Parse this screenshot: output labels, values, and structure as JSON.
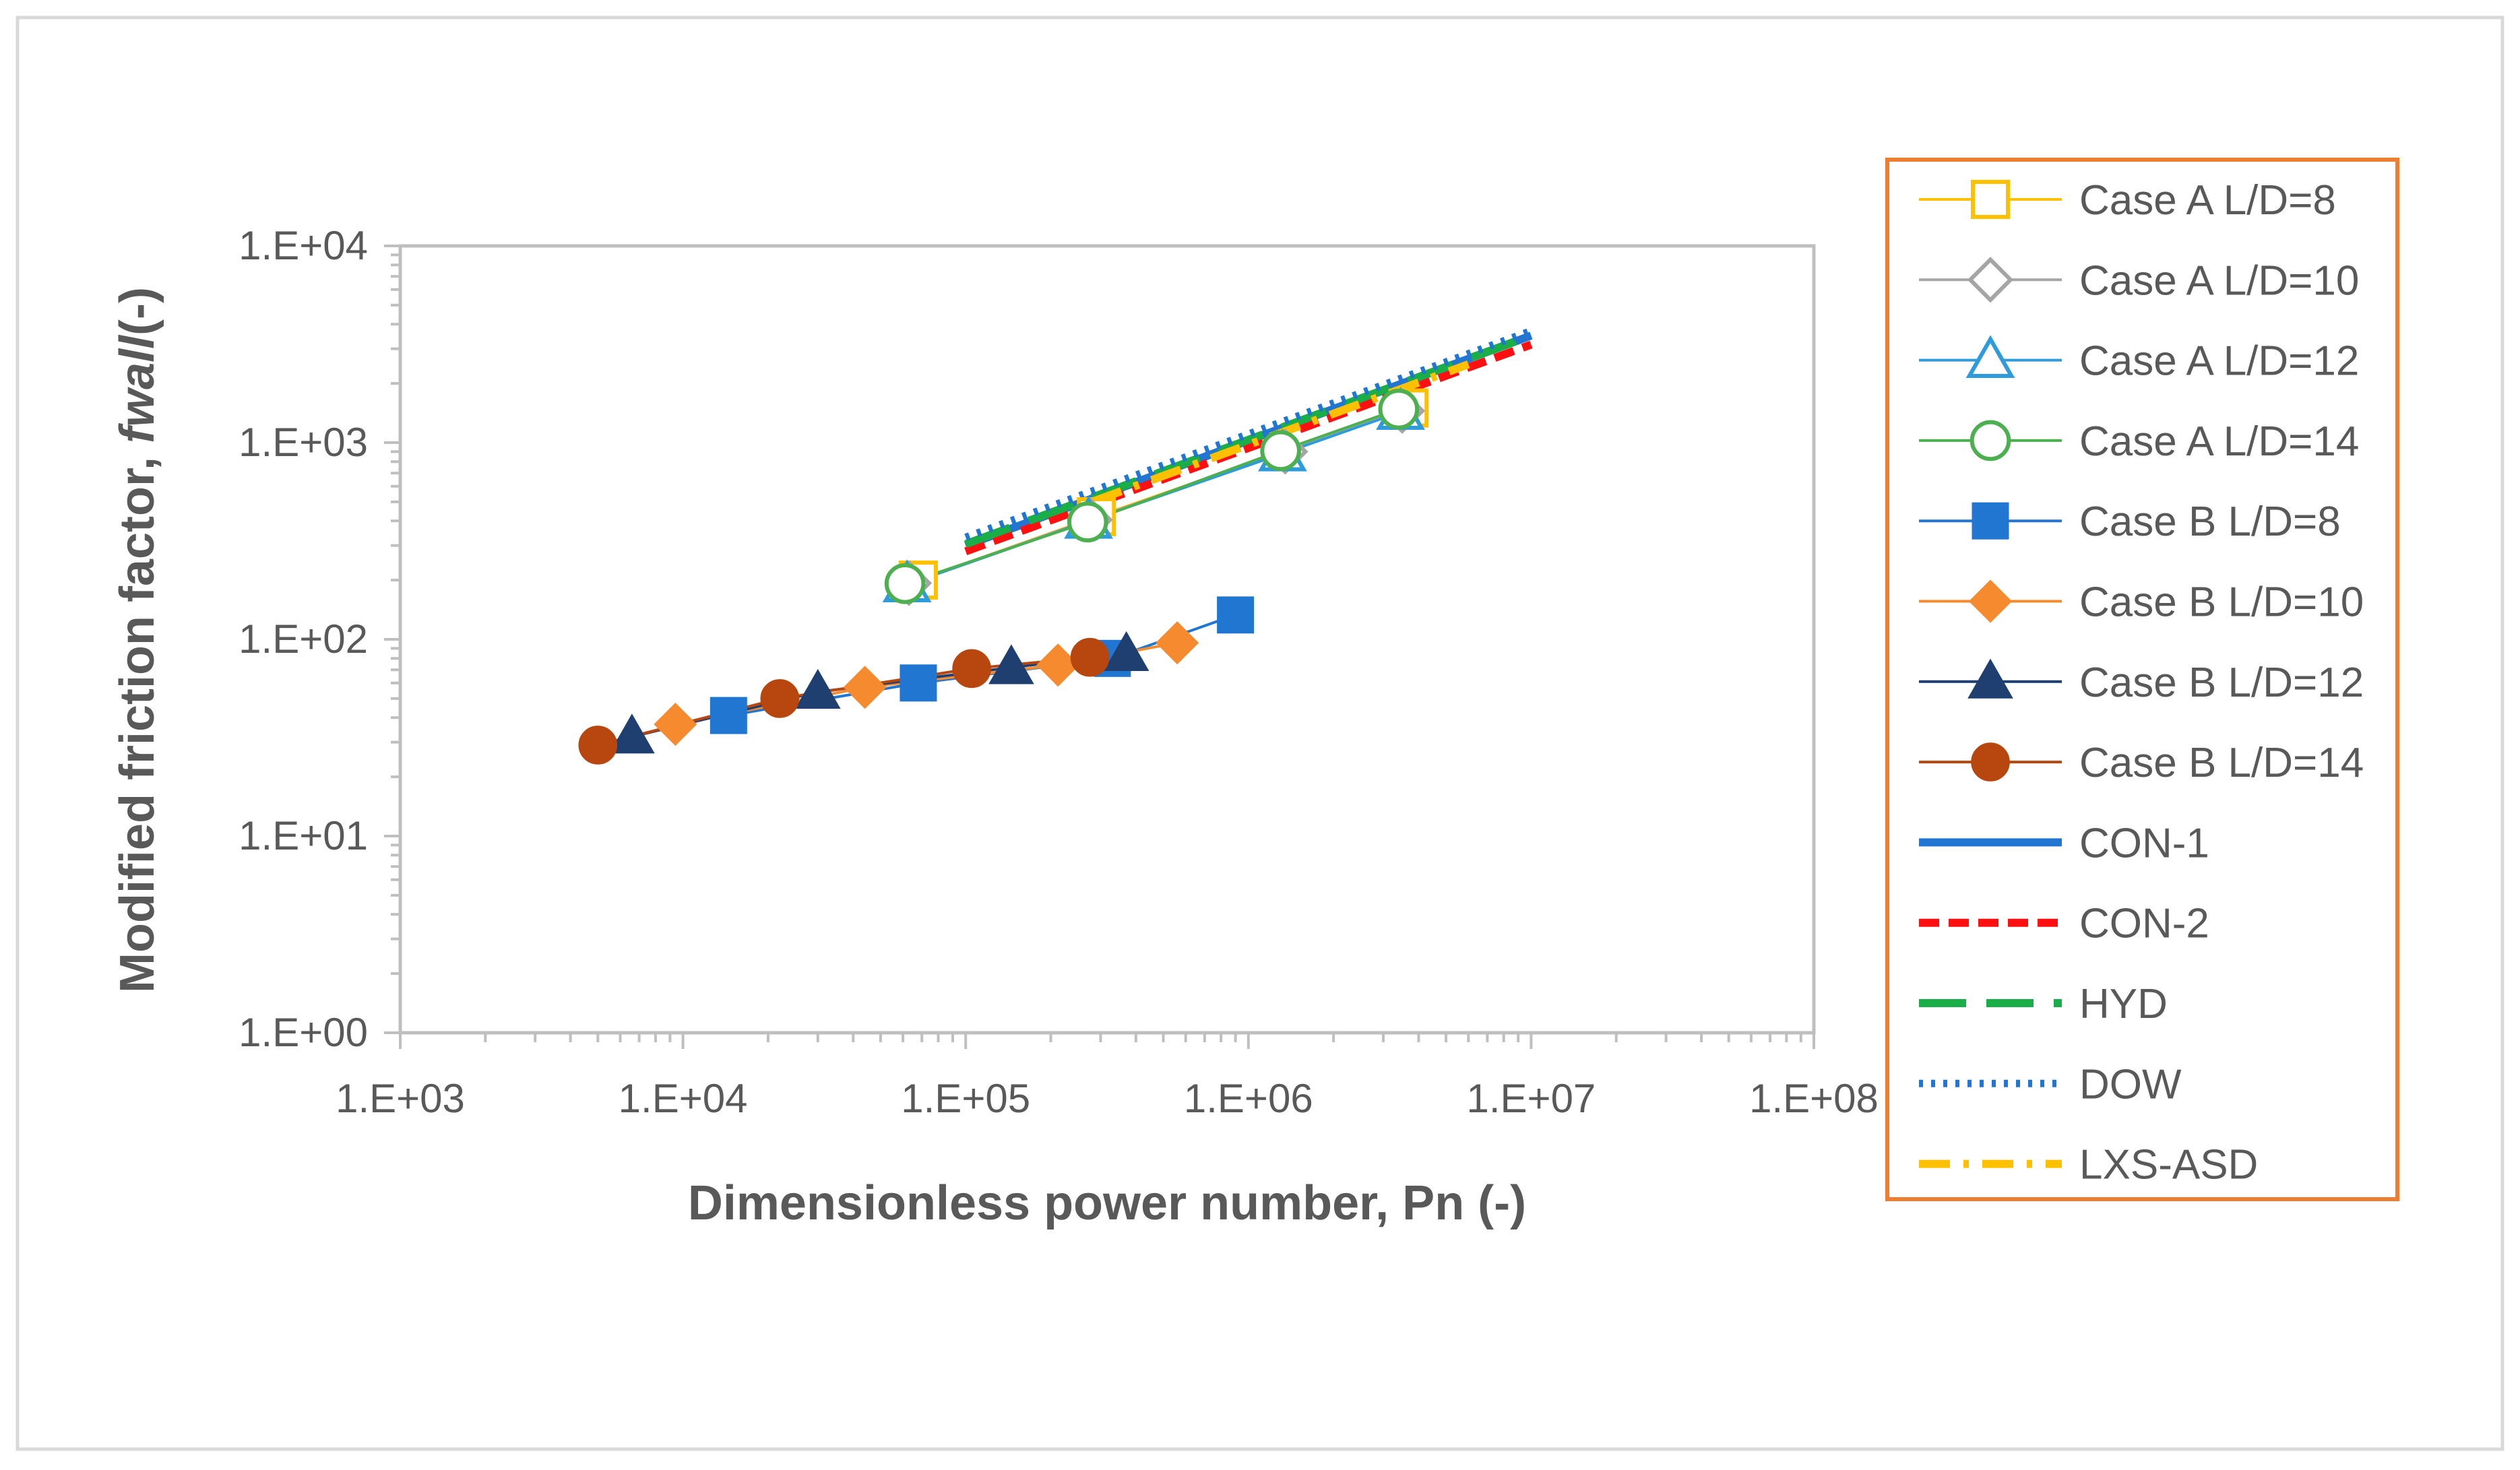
{
  "chart_data": {
    "type": "scatter",
    "title": "",
    "xlabel": "Dimensionless power number, Pn (-)",
    "ylabel_main": "Modified friction factor, ",
    "ylabel_italic": "fwall",
    "ylabel_tail": "(-)",
    "x_scale": "log",
    "y_scale": "log",
    "xlim": [
      1000,
      100000000
    ],
    "ylim": [
      1,
      10000
    ],
    "x_ticks": [
      {
        "value": 1000,
        "label": "1.E+03"
      },
      {
        "value": 10000,
        "label": "1.E+04"
      },
      {
        "value": 100000,
        "label": "1.E+05"
      },
      {
        "value": 1000000,
        "label": "1.E+06"
      },
      {
        "value": 10000000,
        "label": "1.E+07"
      },
      {
        "value": 100000000,
        "label": "1.E+08"
      }
    ],
    "y_ticks": [
      {
        "value": 1,
        "label": "1.E+00"
      },
      {
        "value": 10,
        "label": "1.E+01"
      },
      {
        "value": 100,
        "label": "1.E+02"
      },
      {
        "value": 1000,
        "label": "1.E+03"
      },
      {
        "value": 10000,
        "label": "1.E+04"
      }
    ],
    "grid": false,
    "legend_position": "right",
    "series": [
      {
        "name": "Case A L/D=8",
        "color": "#FFC000",
        "marker": "square-open",
        "line": "solid",
        "x": [
          68000,
          290000,
          3700000
        ],
        "y": [
          200,
          420,
          1500
        ]
      },
      {
        "name": "Case A L/D=10",
        "color": "#A5A5A5",
        "marker": "diamond-open",
        "line": "solid",
        "x": [
          63000,
          275000,
          1350000,
          3500000
        ],
        "y": [
          193,
          405,
          900,
          1450
        ]
      },
      {
        "name": "Case A L/D=12",
        "color": "#2E9BDA",
        "marker": "triangle-open",
        "line": "solid",
        "x": [
          62000,
          272000,
          1320000,
          3450000
        ],
        "y": [
          190,
          400,
          880,
          1430
        ]
      },
      {
        "name": "Case A L/D=14",
        "color": "#4CAF50",
        "marker": "circle-open",
        "line": "solid",
        "x": [
          61000,
          270000,
          1300000,
          3400000
        ],
        "y": [
          192,
          395,
          910,
          1480
        ]
      },
      {
        "name": "Case B L/D=8",
        "color": "#2176D2",
        "marker": "square",
        "line": "solid",
        "x": [
          14500,
          68000,
          330000,
          900000
        ],
        "y": [
          41,
          60,
          80,
          133
        ]
      },
      {
        "name": "Case B L/D=10",
        "color": "#F58A2E",
        "marker": "diamond",
        "line": "solid",
        "x": [
          9400,
          44000,
          212000,
          560000
        ],
        "y": [
          37,
          57,
          74,
          96
        ]
      },
      {
        "name": "Case B L/D=12",
        "color": "#1F3F70",
        "marker": "triangle",
        "line": "solid",
        "x": [
          6600,
          30000,
          145000,
          370000
        ],
        "y": [
          32,
          54,
          72,
          84
        ]
      },
      {
        "name": "Case B L/D=14",
        "color": "#B7460F",
        "marker": "circle",
        "line": "solid",
        "x": [
          5000,
          22000,
          105000,
          275000
        ],
        "y": [
          29,
          50,
          71,
          81
        ]
      },
      {
        "name": "CON-1",
        "color": "#2176D2",
        "marker": "none",
        "line": "solid-thick",
        "x": [
          100000,
          10000000
        ],
        "y": [
          300,
          3500
        ]
      },
      {
        "name": "CON-2",
        "color": "#FF1010",
        "marker": "none",
        "line": "dashed",
        "x": [
          100000,
          10000000
        ],
        "y": [
          280,
          3150
        ]
      },
      {
        "name": "HYD",
        "color": "#1AAE48",
        "marker": "none",
        "line": "long-dash",
        "x": [
          100000,
          10000000
        ],
        "y": [
          305,
          3500
        ]
      },
      {
        "name": "DOW",
        "color": "#2176D2",
        "marker": "none",
        "line": "dotted",
        "x": [
          100000,
          10000000
        ],
        "y": [
          330,
          3700
        ]
      },
      {
        "name": "LXS-ASD",
        "color": "#FFC000",
        "marker": "none",
        "line": "dash-dot",
        "x": [
          280000,
          6000000
        ],
        "y": [
          500,
          2500
        ]
      }
    ]
  },
  "colors": {
    "frame_border": "#D9D9D9",
    "axis": "#BFBFBF",
    "legend_border": "#ED7D31",
    "text": "#595959"
  }
}
